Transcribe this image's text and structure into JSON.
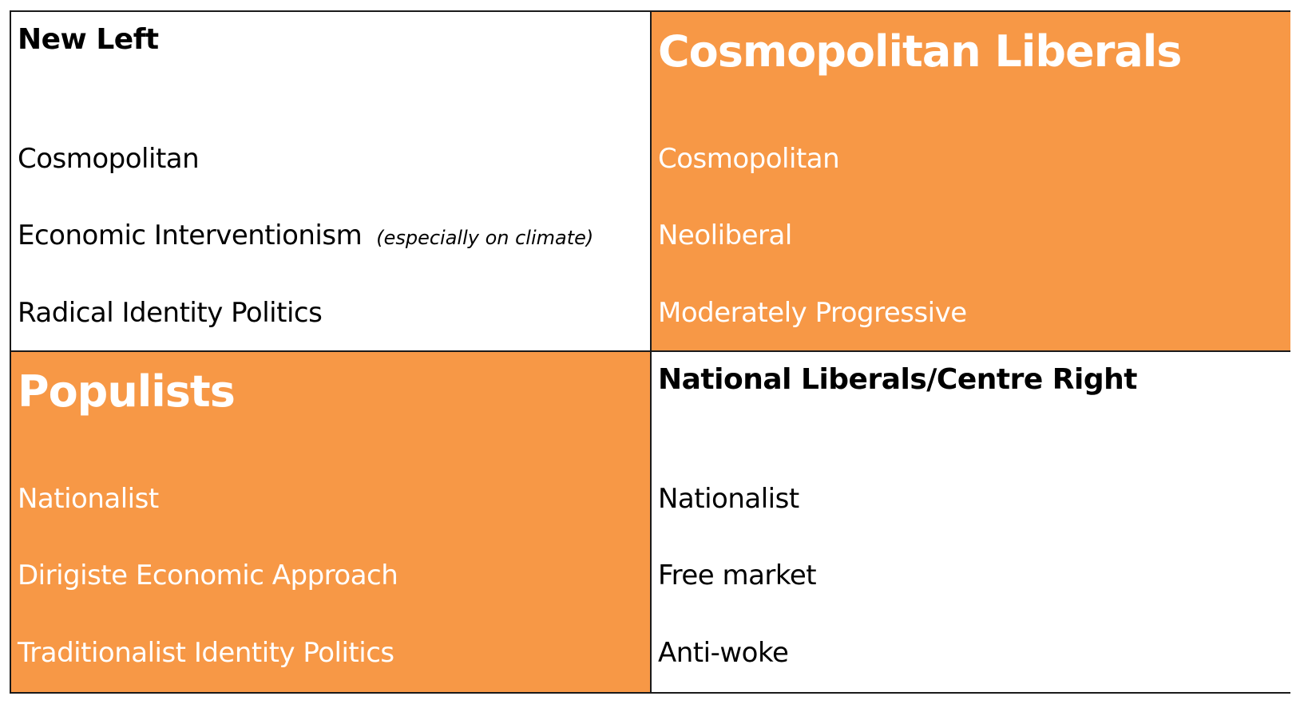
{
  "quadrants": {
    "top_left": {
      "title": "New Left",
      "traits": [
        "Cosmopolitan",
        "Economic Interventionism",
        "Radical Identity Politics"
      ],
      "trait_note": "(especially on climate)",
      "fill": "#ffffff",
      "text_color": "#000000"
    },
    "top_right": {
      "title": "Cosmopolitan Liberals",
      "traits": [
        "Cosmopolitan",
        "Neoliberal",
        "Moderately Progressive"
      ],
      "fill": "#f79846",
      "text_color": "#ffffff"
    },
    "bottom_left": {
      "title": "Populists",
      "traits": [
        "Nationalist",
        "Dirigiste Economic Approach",
        "Traditionalist Identity Politics"
      ],
      "fill": "#f79846",
      "text_color": "#ffffff"
    },
    "bottom_right": {
      "title": "National Liberals/Centre Right",
      "traits": [
        "Nationalist",
        "Free market",
        "Anti-woke"
      ],
      "fill": "#ffffff",
      "text_color": "#000000"
    }
  },
  "border_color": "#1a1a1a"
}
